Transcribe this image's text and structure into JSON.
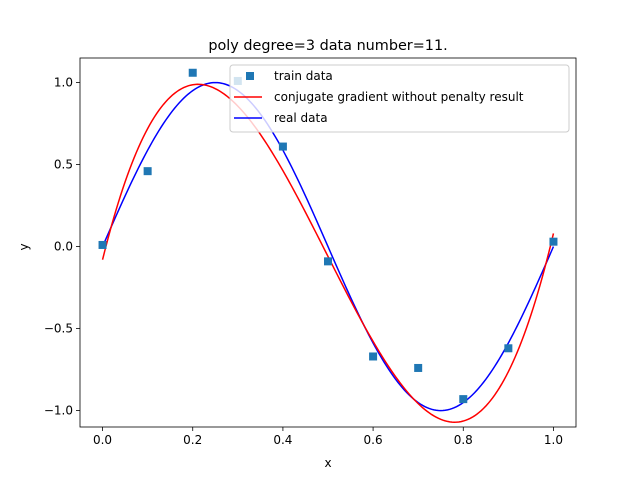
{
  "chart_data": {
    "type": "line",
    "title": "poly degree=3 data number=11.",
    "xlabel": "x",
    "ylabel": "y",
    "xlim": [
      -0.05,
      1.05
    ],
    "ylim": [
      -1.1,
      1.15
    ],
    "xticks": [
      0.0,
      0.2,
      0.4,
      0.6,
      0.8,
      1.0
    ],
    "xtick_labels": [
      "0.0",
      "0.2",
      "0.4",
      "0.6",
      "0.8",
      "1.0"
    ],
    "yticks": [
      -1.0,
      -0.5,
      0.0,
      0.5,
      1.0
    ],
    "ytick_labels": [
      "−1.0",
      "−0.5",
      "0.0",
      "0.5",
      "1.0"
    ],
    "grid": false,
    "legend_position": "top-right",
    "series": [
      {
        "name": "train data",
        "kind": "scatter",
        "marker": "square",
        "color": "#1f77b4",
        "x": [
          0.0,
          0.1,
          0.2,
          0.3,
          0.4,
          0.5,
          0.6,
          0.7,
          0.8,
          0.9,
          1.0
        ],
        "y": [
          0.01,
          0.46,
          1.06,
          1.01,
          0.61,
          -0.09,
          -0.67,
          -0.74,
          -0.93,
          -0.62,
          0.03
        ]
      },
      {
        "name": "conjugate gradient without penalty result",
        "kind": "line",
        "color": "#ff0000",
        "poly_coefficients": [
          -0.08,
          11.1,
          -33.3,
          22.36
        ]
      },
      {
        "name": "real data",
        "kind": "line",
        "color": "#0000ff",
        "function": "sin(2*pi*x)"
      }
    ]
  }
}
